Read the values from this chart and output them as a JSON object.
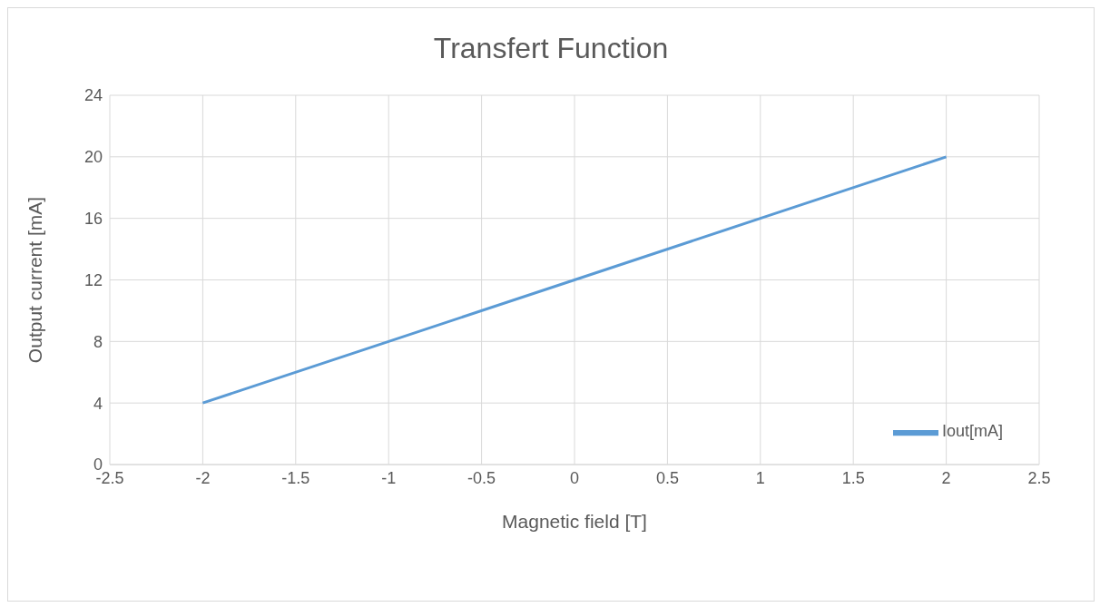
{
  "chart_data": {
    "type": "line",
    "title": "Transfert Function",
    "xlabel": "Magnetic field [T]",
    "ylabel": "Output current [mA]",
    "x": [
      -2,
      -1,
      0,
      1,
      2
    ],
    "series": [
      {
        "name": "Iout[mA]",
        "color": "#5b9bd5",
        "values": [
          4,
          8,
          12,
          16,
          20
        ]
      }
    ],
    "xlim": [
      -2.5,
      2.5
    ],
    "xticks": [
      -2.5,
      -2,
      -1.5,
      -1,
      -0.5,
      0,
      0.5,
      1,
      1.5,
      2,
      2.5
    ],
    "ylim": [
      0,
      24
    ],
    "yticks": [
      0,
      4,
      8,
      12,
      16,
      20,
      24
    ],
    "grid": true,
    "legend": "bottom right",
    "marker": "none",
    "line_style": "solid"
  }
}
